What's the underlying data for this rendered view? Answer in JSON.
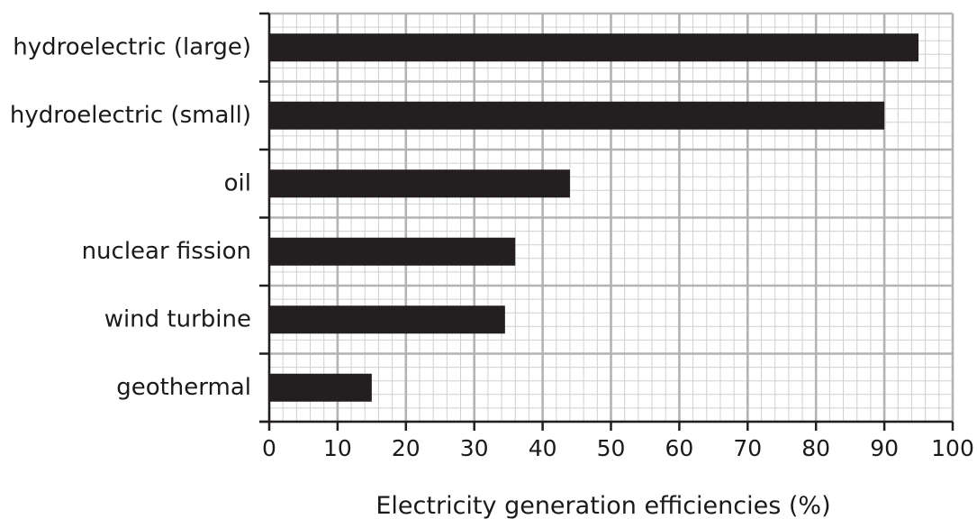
{
  "chart_data": {
    "type": "bar",
    "orientation": "horizontal",
    "categories": [
      "hydroelectric (large)",
      "hydroelectric (small)",
      "oil",
      "nuclear fission",
      "wind turbine",
      "geothermal"
    ],
    "values": [
      95,
      90,
      44,
      36,
      34.5,
      15
    ],
    "xlabel": "Electricity generation efficiencies (%)",
    "ylabel": "",
    "title": "",
    "xlim": [
      0,
      100
    ],
    "xticks": [
      "0",
      "10",
      "20",
      "30",
      "40",
      "50",
      "60",
      "70",
      "80",
      "90",
      "100"
    ],
    "grid": true,
    "minor_grid": true,
    "bar_color": "#231f20",
    "grid_major_color": "#b3b3b3",
    "grid_minor_color": "#d0d0d0",
    "axis_color": "#231f20"
  }
}
